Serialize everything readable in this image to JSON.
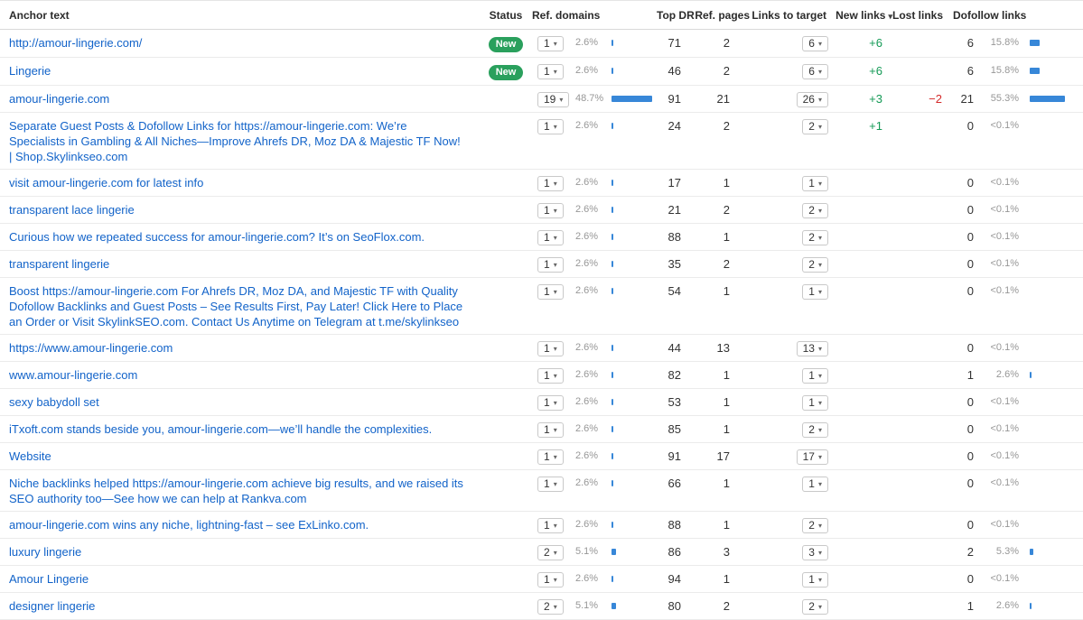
{
  "colors": {
    "link": "#1263c9",
    "bar": "#3787d8",
    "badge_bg": "#2aa05d",
    "positive": "#149a56",
    "negative": "#d42a2a"
  },
  "icons": {
    "dropdown_caret": "▾",
    "sort_caret": "▾"
  },
  "header": {
    "columns": [
      "Anchor text",
      "Status",
      "Ref. domains",
      "Top DR",
      "Ref. pages",
      "Links to target",
      "New links",
      "Lost links",
      "Dofollow links"
    ],
    "sorted_column": "New links"
  },
  "rows": [
    {
      "anchor": "http://amour-lingerie.com/",
      "status": "New",
      "rd_count": "1",
      "rd_pct": "2.6%",
      "rd_val": 2.6,
      "dr": "71",
      "pages": "2",
      "ltt": "6",
      "new": "+6",
      "lost": "",
      "df_count": "6",
      "df_pct": "15.8%",
      "df_val": 15.8
    },
    {
      "anchor": "Lingerie",
      "status": "New",
      "rd_count": "1",
      "rd_pct": "2.6%",
      "rd_val": 2.6,
      "dr": "46",
      "pages": "2",
      "ltt": "6",
      "new": "+6",
      "lost": "",
      "df_count": "6",
      "df_pct": "15.8%",
      "df_val": 15.8
    },
    {
      "anchor": "amour-lingerie.com",
      "status": "",
      "rd_count": "19",
      "rd_pct": "48.7%",
      "rd_val": 48.7,
      "dr": "91",
      "pages": "21",
      "ltt": "26",
      "new": "+3",
      "lost": "−2",
      "df_count": "21",
      "df_pct": "55.3%",
      "df_val": 55.3
    },
    {
      "anchor": "Separate Guest Posts & Dofollow Links for https://amour-lingerie.com: We’re Specialists in Gambling & All Niches—Improve Ahrefs DR, Moz DA & Majestic TF Now! | Shop.Skylinkseo.com",
      "status": "",
      "rd_count": "1",
      "rd_pct": "2.6%",
      "rd_val": 2.6,
      "dr": "24",
      "pages": "2",
      "ltt": "2",
      "new": "+1",
      "lost": "",
      "df_count": "0",
      "df_pct": "<0.1%",
      "df_val": 0
    },
    {
      "anchor": "visit amour-lingerie.com for latest info",
      "status": "",
      "rd_count": "1",
      "rd_pct": "2.6%",
      "rd_val": 2.6,
      "dr": "17",
      "pages": "1",
      "ltt": "1",
      "new": "",
      "lost": "",
      "df_count": "0",
      "df_pct": "<0.1%",
      "df_val": 0
    },
    {
      "anchor": "transparent lace lingerie",
      "status": "",
      "rd_count": "1",
      "rd_pct": "2.6%",
      "rd_val": 2.6,
      "dr": "21",
      "pages": "2",
      "ltt": "2",
      "new": "",
      "lost": "",
      "df_count": "0",
      "df_pct": "<0.1%",
      "df_val": 0
    },
    {
      "anchor": "Curious how we repeated success for amour-lingerie.com? It’s on SeoFlox.com.",
      "status": "",
      "rd_count": "1",
      "rd_pct": "2.6%",
      "rd_val": 2.6,
      "dr": "88",
      "pages": "1",
      "ltt": "2",
      "new": "",
      "lost": "",
      "df_count": "0",
      "df_pct": "<0.1%",
      "df_val": 0
    },
    {
      "anchor": "transparent lingerie",
      "status": "",
      "rd_count": "1",
      "rd_pct": "2.6%",
      "rd_val": 2.6,
      "dr": "35",
      "pages": "2",
      "ltt": "2",
      "new": "",
      "lost": "",
      "df_count": "0",
      "df_pct": "<0.1%",
      "df_val": 0
    },
    {
      "anchor": "Boost https://amour-lingerie.com For Ahrefs DR, Moz DA, and Majestic TF with Quality Dofollow Backlinks and Guest Posts – See Results First, Pay Later! Click Here to Place an Order or Visit SkylinkSEO.com. Contact Us Anytime on Telegram at t.me/skylinkseo",
      "status": "",
      "rd_count": "1",
      "rd_pct": "2.6%",
      "rd_val": 2.6,
      "dr": "54",
      "pages": "1",
      "ltt": "1",
      "new": "",
      "lost": "",
      "df_count": "0",
      "df_pct": "<0.1%",
      "df_val": 0
    },
    {
      "anchor": "https://www.amour-lingerie.com",
      "status": "",
      "rd_count": "1",
      "rd_pct": "2.6%",
      "rd_val": 2.6,
      "dr": "44",
      "pages": "13",
      "ltt": "13",
      "new": "",
      "lost": "",
      "df_count": "0",
      "df_pct": "<0.1%",
      "df_val": 0
    },
    {
      "anchor": "www.amour-lingerie.com",
      "status": "",
      "rd_count": "1",
      "rd_pct": "2.6%",
      "rd_val": 2.6,
      "dr": "82",
      "pages": "1",
      "ltt": "1",
      "new": "",
      "lost": "",
      "df_count": "1",
      "df_pct": "2.6%",
      "df_val": 2.6
    },
    {
      "anchor": "sexy babydoll set",
      "status": "",
      "rd_count": "1",
      "rd_pct": "2.6%",
      "rd_val": 2.6,
      "dr": "53",
      "pages": "1",
      "ltt": "1",
      "new": "",
      "lost": "",
      "df_count": "0",
      "df_pct": "<0.1%",
      "df_val": 0
    },
    {
      "anchor": "iTxoft.com stands beside you, amour-lingerie.com—we’ll handle the complexities.",
      "status": "",
      "rd_count": "1",
      "rd_pct": "2.6%",
      "rd_val": 2.6,
      "dr": "85",
      "pages": "1",
      "ltt": "2",
      "new": "",
      "lost": "",
      "df_count": "0",
      "df_pct": "<0.1%",
      "df_val": 0
    },
    {
      "anchor": "Website",
      "status": "",
      "rd_count": "1",
      "rd_pct": "2.6%",
      "rd_val": 2.6,
      "dr": "91",
      "pages": "17",
      "ltt": "17",
      "new": "",
      "lost": "",
      "df_count": "0",
      "df_pct": "<0.1%",
      "df_val": 0
    },
    {
      "anchor": "Niche backlinks helped https://amour-lingerie.com achieve big results, and we raised its SEO authority too—See how we can help at Rankva.com",
      "status": "",
      "rd_count": "1",
      "rd_pct": "2.6%",
      "rd_val": 2.6,
      "dr": "66",
      "pages": "1",
      "ltt": "1",
      "new": "",
      "lost": "",
      "df_count": "0",
      "df_pct": "<0.1%",
      "df_val": 0
    },
    {
      "anchor": "amour-lingerie.com wins any niche, lightning-fast – see ExLinko.com.",
      "status": "",
      "rd_count": "1",
      "rd_pct": "2.6%",
      "rd_val": 2.6,
      "dr": "88",
      "pages": "1",
      "ltt": "2",
      "new": "",
      "lost": "",
      "df_count": "0",
      "df_pct": "<0.1%",
      "df_val": 0
    },
    {
      "anchor": "luxury lingerie",
      "status": "",
      "rd_count": "2",
      "rd_pct": "5.1%",
      "rd_val": 5.1,
      "dr": "86",
      "pages": "3",
      "ltt": "3",
      "new": "",
      "lost": "",
      "df_count": "2",
      "df_pct": "5.3%",
      "df_val": 5.3
    },
    {
      "anchor": "Amour Lingerie",
      "status": "",
      "rd_count": "1",
      "rd_pct": "2.6%",
      "rd_val": 2.6,
      "dr": "94",
      "pages": "1",
      "ltt": "1",
      "new": "",
      "lost": "",
      "df_count": "0",
      "df_pct": "<0.1%",
      "df_val": 0
    },
    {
      "anchor": "designer lingerie",
      "status": "",
      "rd_count": "2",
      "rd_pct": "5.1%",
      "rd_val": 5.1,
      "dr": "80",
      "pages": "2",
      "ltt": "2",
      "new": "",
      "lost": "",
      "df_count": "1",
      "df_pct": "2.6%",
      "df_val": 2.6
    }
  ]
}
